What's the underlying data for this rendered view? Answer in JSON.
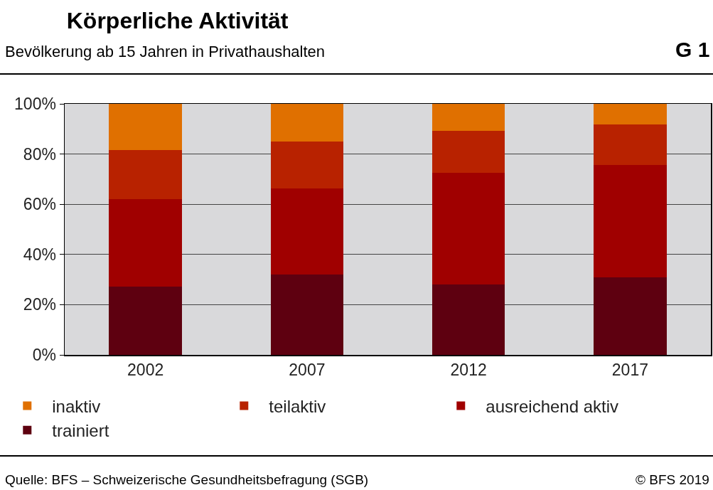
{
  "chart_data": {
    "type": "bar",
    "title": "Körperliche Aktivität",
    "subtitle": "Bevölkerung ab 15 Jahren in Privathaushalten",
    "categories": [
      "2002",
      "2007",
      "2012",
      "2017"
    ],
    "stacked": true,
    "series": [
      {
        "name": "trainiert",
        "color": "#5e0010",
        "values": [
          27.2,
          32.0,
          28.0,
          30.9
        ]
      },
      {
        "name": "ausreichend aktiv",
        "color": "#a00000",
        "values": [
          34.8,
          34.3,
          44.5,
          44.7
        ]
      },
      {
        "name": "teilaktiv",
        "color": "#b82200",
        "values": [
          19.6,
          18.7,
          16.7,
          16.2
        ]
      },
      {
        "name": "inaktiv",
        "color": "#e07000",
        "values": [
          18.4,
          15.0,
          10.8,
          8.2
        ]
      }
    ],
    "ylim": [
      0,
      100
    ],
    "yticks": [
      {
        "value": 0,
        "label": "0%"
      },
      {
        "value": 20,
        "label": "20%"
      },
      {
        "value": 40,
        "label": "40%"
      },
      {
        "value": 60,
        "label": "60%"
      },
      {
        "value": 80,
        "label": "80%"
      },
      {
        "value": 100,
        "label": "100%"
      }
    ],
    "grid": "y",
    "legend": "bottom",
    "annotations": [
      "G 1",
      "Quelle: BFS – Schweizerische Gesundheitsbefragung (SGB)",
      "© BFS 2019"
    ]
  }
}
